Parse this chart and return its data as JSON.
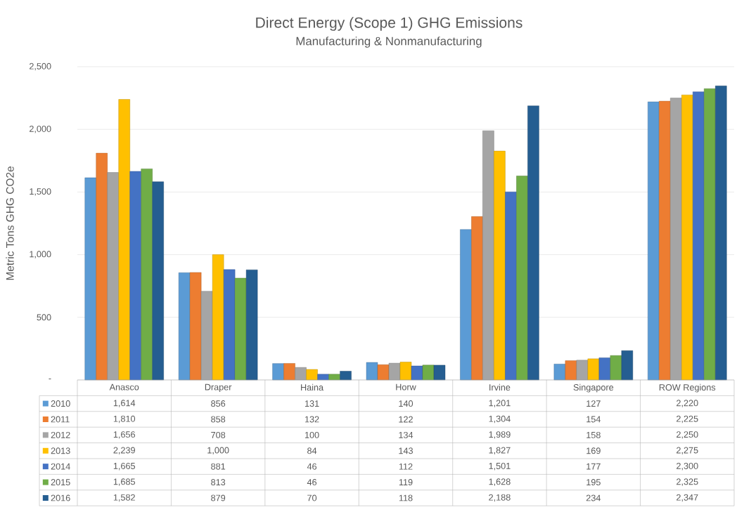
{
  "chart_data": {
    "type": "bar",
    "title": "Direct Energy (Scope 1) GHG Emissions",
    "subtitle": "Manufacturing & Nonmanufacturing",
    "ylabel": "Metric Tons GHG CO2e",
    "categories": [
      "Anasco",
      "Draper",
      "Haina",
      "Horw",
      "Irvine",
      "Singapore",
      "ROW Regions"
    ],
    "ylim": [
      0,
      2500
    ],
    "yticks": [
      {
        "value": 0,
        "label": "-"
      },
      500,
      {
        "value": 1000,
        "label": "1,000"
      },
      {
        "value": 1500,
        "label": "1,500"
      },
      {
        "value": 2000,
        "label": "2,000"
      },
      {
        "value": 2500,
        "label": "2,500"
      }
    ],
    "grid": "y",
    "legend": "bottom",
    "series": [
      {
        "name": "2010",
        "color": "#5b9bd5",
        "values": [
          1614,
          856,
          131,
          140,
          1201,
          127,
          2220
        ],
        "value_labels": [
          "1,614",
          "856",
          "131",
          "140",
          "1,201",
          "127",
          "2,220"
        ]
      },
      {
        "name": "2011",
        "color": "#ed7d31",
        "values": [
          1810,
          858,
          132,
          122,
          1304,
          154,
          2225
        ],
        "value_labels": [
          "1,810",
          "858",
          "132",
          "122",
          "1,304",
          "154",
          "2,225"
        ]
      },
      {
        "name": "2012",
        "color": "#a5a5a5",
        "values": [
          1656,
          708,
          100,
          134,
          1989,
          158,
          2250
        ],
        "value_labels": [
          "1,656",
          "708",
          "100",
          "134",
          "1,989",
          "158",
          "2,250"
        ]
      },
      {
        "name": "2013",
        "color": "#ffc000",
        "values": [
          2239,
          1000,
          84,
          143,
          1827,
          169,
          2275
        ],
        "value_labels": [
          "2,239",
          "1,000",
          "84",
          "143",
          "1,827",
          "169",
          "2,275"
        ]
      },
      {
        "name": "2014",
        "color": "#4472c4",
        "values": [
          1665,
          881,
          46,
          112,
          1501,
          177,
          2300
        ],
        "value_labels": [
          "1,665",
          "881",
          "46",
          "112",
          "1,501",
          "177",
          "2,300"
        ]
      },
      {
        "name": "2015",
        "color": "#70ad47",
        "values": [
          1685,
          813,
          46,
          119,
          1628,
          195,
          2325
        ],
        "value_labels": [
          "1,685",
          "813",
          "46",
          "119",
          "1,628",
          "195",
          "2,325"
        ]
      },
      {
        "name": "2016",
        "color": "#255e91",
        "values": [
          1582,
          879,
          70,
          118,
          2188,
          234,
          2347
        ],
        "value_labels": [
          "1,582",
          "879",
          "70",
          "118",
          "2,188",
          "234",
          "2,347"
        ]
      }
    ]
  }
}
